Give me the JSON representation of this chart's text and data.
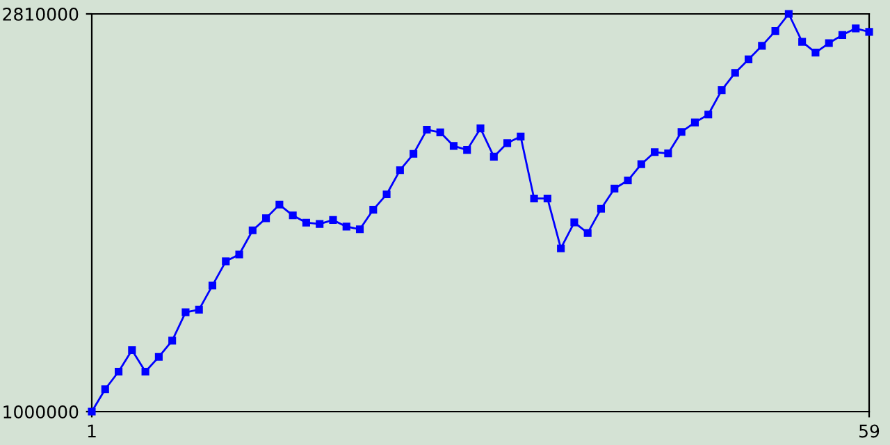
{
  "chart_data": {
    "type": "line",
    "x": [
      1,
      2,
      3,
      4,
      5,
      6,
      7,
      8,
      9,
      10,
      11,
      12,
      13,
      14,
      15,
      16,
      17,
      18,
      19,
      20,
      21,
      22,
      23,
      24,
      25,
      26,
      27,
      28,
      29,
      30,
      31,
      32,
      33,
      34,
      35,
      36,
      37,
      38,
      39,
      40,
      41,
      42,
      43,
      44,
      45,
      46,
      47,
      48,
      49,
      50,
      51,
      52,
      53,
      54,
      55,
      56,
      57,
      58,
      59
    ],
    "series": [
      {
        "color": "#0000ff",
        "values": [
          1000000,
          1102000,
          1182000,
          1280000,
          1182000,
          1249000,
          1323000,
          1452000,
          1464000,
          1574000,
          1684000,
          1715000,
          1825000,
          1880000,
          1942000,
          1893000,
          1860000,
          1854000,
          1872000,
          1842000,
          1830000,
          1919000,
          1989000,
          2099000,
          2173000,
          2283000,
          2271000,
          2209000,
          2191000,
          2289000,
          2160000,
          2222000,
          2252000,
          1970000,
          1970000,
          1743000,
          1861000,
          1813000,
          1923000,
          2015000,
          2052000,
          2126000,
          2181000,
          2175000,
          2273000,
          2316000,
          2352000,
          2463000,
          2542000,
          2603000,
          2665000,
          2732000,
          2810000,
          2683000,
          2634000,
          2677000,
          2714000,
          2744000,
          2728000
        ]
      }
    ],
    "xlim": [
      1,
      59
    ],
    "xticks": [
      1,
      59
    ],
    "ylim": [
      1000000,
      2810000
    ],
    "yticks": [
      1000000,
      2810000
    ],
    "marker": "square",
    "line_style": "solid",
    "grid": false
  }
}
